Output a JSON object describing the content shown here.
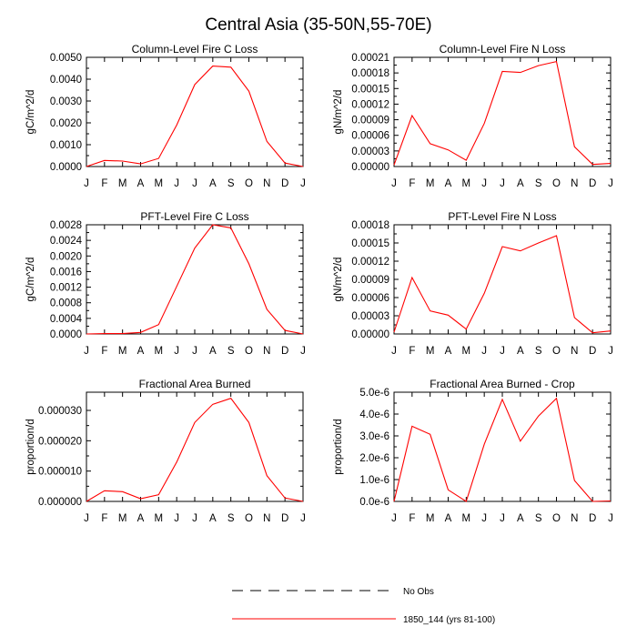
{
  "title": "Central Asia (35-50N,55-70E)",
  "month_labels": [
    "J",
    "F",
    "M",
    "A",
    "M",
    "J",
    "J",
    "A",
    "S",
    "O",
    "N",
    "D",
    "J"
  ],
  "legend": {
    "obs_label": "No Obs",
    "model_label": "1850_144 (yrs 81-100)",
    "model_color": "#ff0000",
    "obs_color": "#000000"
  },
  "chart_data": [
    {
      "type": "line",
      "title": "Column-Level Fire C Loss",
      "ylabel": "gC/m^2/d",
      "ylim": [
        0,
        0.005
      ],
      "yticks": [
        0,
        0.001,
        0.002,
        0.003,
        0.004,
        0.005
      ],
      "ytick_labels": [
        "0.0000",
        "0.0010",
        "0.0020",
        "0.0030",
        "0.0040",
        "0.0050"
      ],
      "series": [
        {
          "values": [
            0.0,
            0.00028,
            0.00025,
            0.00012,
            0.00037,
            0.0019,
            0.00375,
            0.0046,
            0.00455,
            0.00345,
            0.00115,
            0.00016,
            0.0
          ]
        }
      ]
    },
    {
      "type": "line",
      "title": "Column-Level Fire N Loss",
      "ylabel": "gN/m^2/d",
      "ylim": [
        0,
        0.00021
      ],
      "yticks": [
        0,
        3e-05,
        6e-05,
        9e-05,
        0.00012,
        0.00015,
        0.00018,
        0.00021
      ],
      "ytick_labels": [
        "0.00000",
        "0.00003",
        "0.00006",
        "0.00009",
        "0.00012",
        "0.00015",
        "0.00018",
        "0.00021"
      ],
      "series": [
        {
          "values": [
            3e-06,
            9.8e-05,
            4.4e-05,
            3.2e-05,
            1.2e-05,
            8.3e-05,
            0.000183,
            0.000181,
            0.000194,
            0.000202,
            3.8e-05,
            4e-06,
            6e-06
          ]
        }
      ]
    },
    {
      "type": "line",
      "title": "PFT-Level Fire C Loss",
      "ylabel": "gC/m^2/d",
      "ylim": [
        0,
        0.0028
      ],
      "yticks": [
        0,
        0.0004,
        0.0008,
        0.0012,
        0.0016,
        0.002,
        0.0024,
        0.0028
      ],
      "ytick_labels": [
        "0.0000",
        "0.0004",
        "0.0008",
        "0.0012",
        "0.0016",
        "0.0020",
        "0.0024",
        "0.0028"
      ],
      "series": [
        {
          "values": [
            0.0,
            1e-05,
            1e-05,
            4e-05,
            0.00024,
            0.00122,
            0.0022,
            0.0028,
            0.00272,
            0.0018,
            0.00063,
            9e-05,
            0.0
          ]
        }
      ]
    },
    {
      "type": "line",
      "title": "PFT-Level Fire N Loss",
      "ylabel": "gN/m^2/d",
      "ylim": [
        0,
        0.00018
      ],
      "yticks": [
        0,
        3e-05,
        6e-05,
        9e-05,
        0.00012,
        0.00015,
        0.00018
      ],
      "ytick_labels": [
        "0.00000",
        "0.00003",
        "0.00006",
        "0.00009",
        "0.00012",
        "0.00015",
        "0.00018"
      ],
      "series": [
        {
          "values": [
            3e-06,
            9.3e-05,
            3.8e-05,
            3.1e-05,
            8e-06,
            6.7e-05,
            0.000144,
            0.000137,
            0.00015,
            0.000162,
            2.7e-05,
            2e-06,
            5e-06
          ]
        }
      ]
    },
    {
      "type": "line",
      "title": "Fractional Area Burned",
      "ylabel": "proportion/d",
      "ylim": [
        0,
        3.6e-05
      ],
      "yticks": [
        0,
        1e-05,
        2e-05,
        3e-05
      ],
      "ytick_labels": [
        "0.000000",
        "0.000010",
        "0.000020",
        "0.000030"
      ],
      "series": [
        {
          "values": [
            0.0,
            3.5e-06,
            3.2e-06,
            9e-07,
            2.2e-06,
            1.3e-05,
            2.6e-05,
            3.2e-05,
            3.4e-05,
            2.6e-05,
            8.5e-06,
            1.1e-06,
            0.0
          ]
        }
      ]
    },
    {
      "type": "line",
      "title": "Fractional Area Burned - Crop",
      "ylabel": "proportion/d",
      "ylim": [
        0,
        5e-06
      ],
      "yticks": [
        0,
        1e-06,
        2e-06,
        3e-06,
        4e-06,
        5e-06
      ],
      "ytick_labels": [
        "0.0e-6",
        "1.0e-6",
        "2.0e-6",
        "3.0e-6",
        "4.0e-6",
        "5.0e-6"
      ],
      "series": [
        {
          "values": [
            0.0,
            3.44e-06,
            3.07e-06,
            5.3e-07,
            0.0,
            2.62e-06,
            4.67e-06,
            2.76e-06,
            3.91e-06,
            4.72e-06,
            9.6e-07,
            0.0,
            2e-08
          ]
        }
      ]
    }
  ]
}
